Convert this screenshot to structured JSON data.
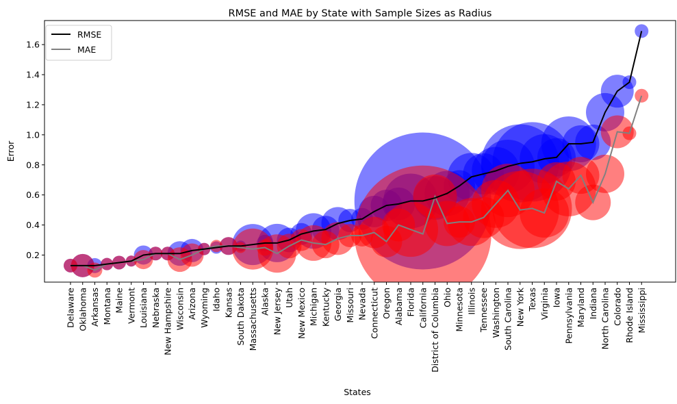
{
  "chart_data": {
    "type": "line",
    "title": "RMSE and MAE by State with Sample Sizes as Radius",
    "xlabel": "States",
    "ylabel": "Error",
    "ylim": [
      0.02,
      1.76
    ],
    "yticks": [
      "0.2",
      "0.4",
      "0.6",
      "0.8",
      "1.0",
      "1.2",
      "1.4",
      "1.6"
    ],
    "legend_position": "top-left",
    "colors": {
      "rmse_line": "#000000",
      "mae_line": "#808080",
      "rmse_bubble": "#0000ff",
      "mae_bubble": "#ff0000"
    },
    "categories": [
      "Delaware",
      "Oklahoma",
      "Arkansas",
      "Montana",
      "Maine",
      "Vermont",
      "Louisiana",
      "Nebraska",
      "New Hampshire",
      "Wisconsin",
      "Arizona",
      "Wyoming",
      "Idaho",
      "Kansas",
      "South Dakota",
      "Massachusetts",
      "Alaska",
      "New Jersey",
      "Utah",
      "New Mexico",
      "Michigan",
      "Kentucky",
      "Georgia",
      "Missouri",
      "Nevada",
      "Connecticut",
      "Oregon",
      "Alabama",
      "Florida",
      "California",
      "District of Columbia",
      "Ohio",
      "Minnesota",
      "Illinois",
      "Tennessee",
      "Washington",
      "South Carolina",
      "New York",
      "Texas",
      "Virginia",
      "Iowa",
      "Pennsylvania",
      "Maryland",
      "Indiana",
      "North Carolina",
      "Colorado",
      "Rhode Island",
      "Mississippi"
    ],
    "series": [
      {
        "name": "RMSE",
        "values": [
          0.13,
          0.13,
          0.13,
          0.14,
          0.15,
          0.16,
          0.2,
          0.21,
          0.21,
          0.21,
          0.23,
          0.24,
          0.25,
          0.26,
          0.26,
          0.27,
          0.28,
          0.28,
          0.3,
          0.34,
          0.36,
          0.37,
          0.41,
          0.43,
          0.44,
          0.49,
          0.53,
          0.54,
          0.56,
          0.56,
          0.58,
          0.61,
          0.66,
          0.72,
          0.74,
          0.76,
          0.79,
          0.81,
          0.82,
          0.84,
          0.85,
          0.94,
          0.94,
          0.95,
          1.15,
          1.29,
          1.35,
          1.69
        ]
      },
      {
        "name": "MAE",
        "values": [
          0.13,
          0.13,
          0.1,
          0.14,
          0.15,
          0.16,
          0.17,
          0.21,
          0.21,
          0.17,
          0.2,
          0.24,
          0.26,
          0.26,
          0.25,
          0.24,
          0.25,
          0.21,
          0.26,
          0.3,
          0.28,
          0.27,
          0.31,
          0.33,
          0.33,
          0.35,
          0.29,
          0.4,
          0.37,
          0.34,
          0.59,
          0.41,
          0.42,
          0.42,
          0.45,
          0.54,
          0.63,
          0.5,
          0.51,
          0.48,
          0.69,
          0.64,
          0.73,
          0.55,
          0.74,
          1.02,
          1.01,
          1.26
        ]
      }
    ],
    "bubble_radius": [
      10,
      17,
      11,
      9,
      10,
      8,
      14,
      10,
      10,
      18,
      17,
      9,
      9,
      13,
      8,
      30,
      12,
      28,
      18,
      16,
      26,
      20,
      24,
      17,
      16,
      23,
      23,
      24,
      40,
      100,
      32,
      33,
      23,
      35,
      30,
      35,
      39,
      57,
      58,
      36,
      28,
      40,
      27,
      26,
      28,
      24,
      10,
      10
    ]
  }
}
